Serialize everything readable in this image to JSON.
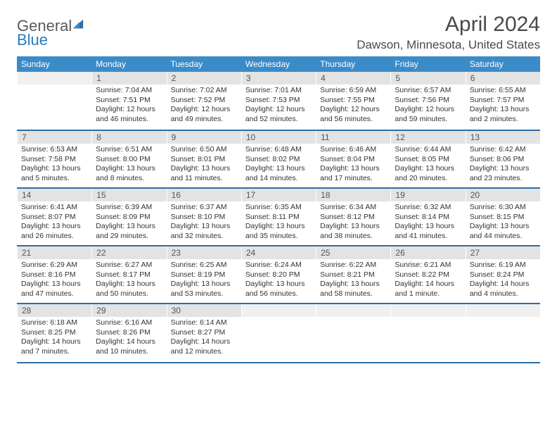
{
  "brand": {
    "part1": "General",
    "part2": "Blue"
  },
  "title": "April 2024",
  "location": "Dawson, Minnesota, United States",
  "colors": {
    "header_bg": "#3b8bc9",
    "header_text": "#ffffff",
    "row_border": "#2b6ea8",
    "daynum_bg": "#e3e3e3",
    "logo_gray": "#5a5a5a",
    "logo_blue": "#2b7bbf"
  },
  "weekdays": [
    "Sunday",
    "Monday",
    "Tuesday",
    "Wednesday",
    "Thursday",
    "Friday",
    "Saturday"
  ],
  "weeks": [
    [
      null,
      {
        "n": "1",
        "sr": "Sunrise: 7:04 AM",
        "ss": "Sunset: 7:51 PM",
        "d1": "Daylight: 12 hours",
        "d2": "and 46 minutes."
      },
      {
        "n": "2",
        "sr": "Sunrise: 7:02 AM",
        "ss": "Sunset: 7:52 PM",
        "d1": "Daylight: 12 hours",
        "d2": "and 49 minutes."
      },
      {
        "n": "3",
        "sr": "Sunrise: 7:01 AM",
        "ss": "Sunset: 7:53 PM",
        "d1": "Daylight: 12 hours",
        "d2": "and 52 minutes."
      },
      {
        "n": "4",
        "sr": "Sunrise: 6:59 AM",
        "ss": "Sunset: 7:55 PM",
        "d1": "Daylight: 12 hours",
        "d2": "and 56 minutes."
      },
      {
        "n": "5",
        "sr": "Sunrise: 6:57 AM",
        "ss": "Sunset: 7:56 PM",
        "d1": "Daylight: 12 hours",
        "d2": "and 59 minutes."
      },
      {
        "n": "6",
        "sr": "Sunrise: 6:55 AM",
        "ss": "Sunset: 7:57 PM",
        "d1": "Daylight: 13 hours",
        "d2": "and 2 minutes."
      }
    ],
    [
      {
        "n": "7",
        "sr": "Sunrise: 6:53 AM",
        "ss": "Sunset: 7:58 PM",
        "d1": "Daylight: 13 hours",
        "d2": "and 5 minutes."
      },
      {
        "n": "8",
        "sr": "Sunrise: 6:51 AM",
        "ss": "Sunset: 8:00 PM",
        "d1": "Daylight: 13 hours",
        "d2": "and 8 minutes."
      },
      {
        "n": "9",
        "sr": "Sunrise: 6:50 AM",
        "ss": "Sunset: 8:01 PM",
        "d1": "Daylight: 13 hours",
        "d2": "and 11 minutes."
      },
      {
        "n": "10",
        "sr": "Sunrise: 6:48 AM",
        "ss": "Sunset: 8:02 PM",
        "d1": "Daylight: 13 hours",
        "d2": "and 14 minutes."
      },
      {
        "n": "11",
        "sr": "Sunrise: 6:46 AM",
        "ss": "Sunset: 8:04 PM",
        "d1": "Daylight: 13 hours",
        "d2": "and 17 minutes."
      },
      {
        "n": "12",
        "sr": "Sunrise: 6:44 AM",
        "ss": "Sunset: 8:05 PM",
        "d1": "Daylight: 13 hours",
        "d2": "and 20 minutes."
      },
      {
        "n": "13",
        "sr": "Sunrise: 6:42 AM",
        "ss": "Sunset: 8:06 PM",
        "d1": "Daylight: 13 hours",
        "d2": "and 23 minutes."
      }
    ],
    [
      {
        "n": "14",
        "sr": "Sunrise: 6:41 AM",
        "ss": "Sunset: 8:07 PM",
        "d1": "Daylight: 13 hours",
        "d2": "and 26 minutes."
      },
      {
        "n": "15",
        "sr": "Sunrise: 6:39 AM",
        "ss": "Sunset: 8:09 PM",
        "d1": "Daylight: 13 hours",
        "d2": "and 29 minutes."
      },
      {
        "n": "16",
        "sr": "Sunrise: 6:37 AM",
        "ss": "Sunset: 8:10 PM",
        "d1": "Daylight: 13 hours",
        "d2": "and 32 minutes."
      },
      {
        "n": "17",
        "sr": "Sunrise: 6:35 AM",
        "ss": "Sunset: 8:11 PM",
        "d1": "Daylight: 13 hours",
        "d2": "and 35 minutes."
      },
      {
        "n": "18",
        "sr": "Sunrise: 6:34 AM",
        "ss": "Sunset: 8:12 PM",
        "d1": "Daylight: 13 hours",
        "d2": "and 38 minutes."
      },
      {
        "n": "19",
        "sr": "Sunrise: 6:32 AM",
        "ss": "Sunset: 8:14 PM",
        "d1": "Daylight: 13 hours",
        "d2": "and 41 minutes."
      },
      {
        "n": "20",
        "sr": "Sunrise: 6:30 AM",
        "ss": "Sunset: 8:15 PM",
        "d1": "Daylight: 13 hours",
        "d2": "and 44 minutes."
      }
    ],
    [
      {
        "n": "21",
        "sr": "Sunrise: 6:29 AM",
        "ss": "Sunset: 8:16 PM",
        "d1": "Daylight: 13 hours",
        "d2": "and 47 minutes."
      },
      {
        "n": "22",
        "sr": "Sunrise: 6:27 AM",
        "ss": "Sunset: 8:17 PM",
        "d1": "Daylight: 13 hours",
        "d2": "and 50 minutes."
      },
      {
        "n": "23",
        "sr": "Sunrise: 6:25 AM",
        "ss": "Sunset: 8:19 PM",
        "d1": "Daylight: 13 hours",
        "d2": "and 53 minutes."
      },
      {
        "n": "24",
        "sr": "Sunrise: 6:24 AM",
        "ss": "Sunset: 8:20 PM",
        "d1": "Daylight: 13 hours",
        "d2": "and 56 minutes."
      },
      {
        "n": "25",
        "sr": "Sunrise: 6:22 AM",
        "ss": "Sunset: 8:21 PM",
        "d1": "Daylight: 13 hours",
        "d2": "and 58 minutes."
      },
      {
        "n": "26",
        "sr": "Sunrise: 6:21 AM",
        "ss": "Sunset: 8:22 PM",
        "d1": "Daylight: 14 hours",
        "d2": "and 1 minute."
      },
      {
        "n": "27",
        "sr": "Sunrise: 6:19 AM",
        "ss": "Sunset: 8:24 PM",
        "d1": "Daylight: 14 hours",
        "d2": "and 4 minutes."
      }
    ],
    [
      {
        "n": "28",
        "sr": "Sunrise: 6:18 AM",
        "ss": "Sunset: 8:25 PM",
        "d1": "Daylight: 14 hours",
        "d2": "and 7 minutes."
      },
      {
        "n": "29",
        "sr": "Sunrise: 6:16 AM",
        "ss": "Sunset: 8:26 PM",
        "d1": "Daylight: 14 hours",
        "d2": "and 10 minutes."
      },
      {
        "n": "30",
        "sr": "Sunrise: 6:14 AM",
        "ss": "Sunset: 8:27 PM",
        "d1": "Daylight: 14 hours",
        "d2": "and 12 minutes."
      },
      null,
      null,
      null,
      null
    ]
  ]
}
